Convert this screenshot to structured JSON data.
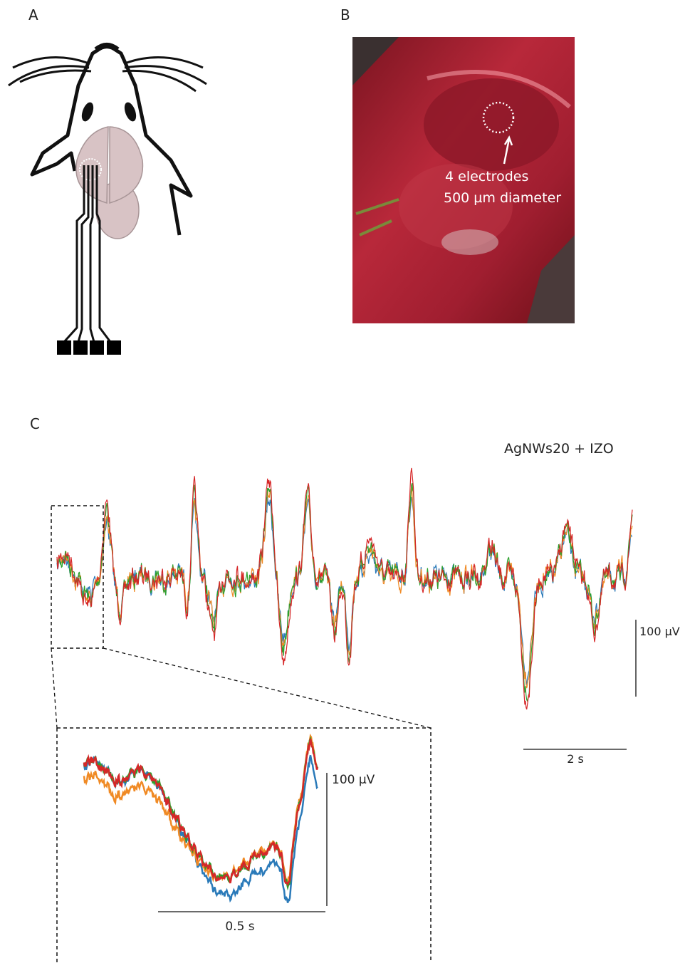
{
  "panels": {
    "a": {
      "label": "A"
    },
    "b": {
      "label": "B",
      "annotation": [
        "4 electrodes",
        "500 µm diameter"
      ]
    },
    "c": {
      "label": "C",
      "title": "AgNWs20 + IZO",
      "scale_y": "100 µV",
      "scale_x": "2 s",
      "inset": {
        "scale_y": "100 µV",
        "scale_x": "0.5 s"
      }
    }
  }
}
